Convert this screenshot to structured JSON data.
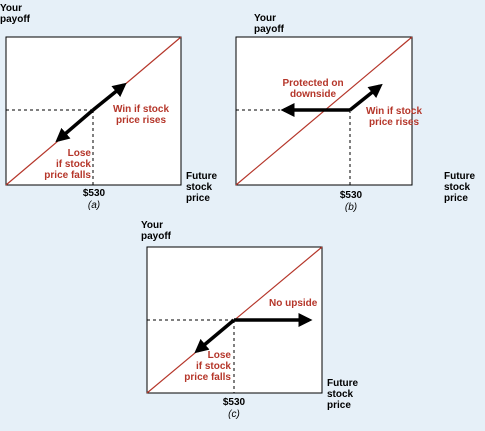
{
  "panels": [
    {
      "y_label": "Your\npayoff",
      "x_label": "Future\nstock\nprice",
      "tick": "$530",
      "caption": "(a)",
      "left_annotation": "Lose\nif stock\nprice falls",
      "right_annotation": "Win if stock\nprice rises"
    },
    {
      "y_label": "Your\npayoff",
      "x_label": "Future\nstock\nprice",
      "tick": "$530",
      "caption": "(b)",
      "left_annotation": "Protected on\ndownside",
      "right_annotation": "Win if stock\nprice rises"
    },
    {
      "y_label": "Your\npayoff",
      "x_label": "Future\nstock\nprice",
      "tick": "$530",
      "caption": "(c)",
      "left_annotation": "Lose\nif stock\nprice falls",
      "right_annotation": "No upside"
    }
  ],
  "colors": {
    "background": "#e6f0f8",
    "panel": "#ffffff",
    "line": "#b5362a",
    "annotation": "#b5362a"
  }
}
